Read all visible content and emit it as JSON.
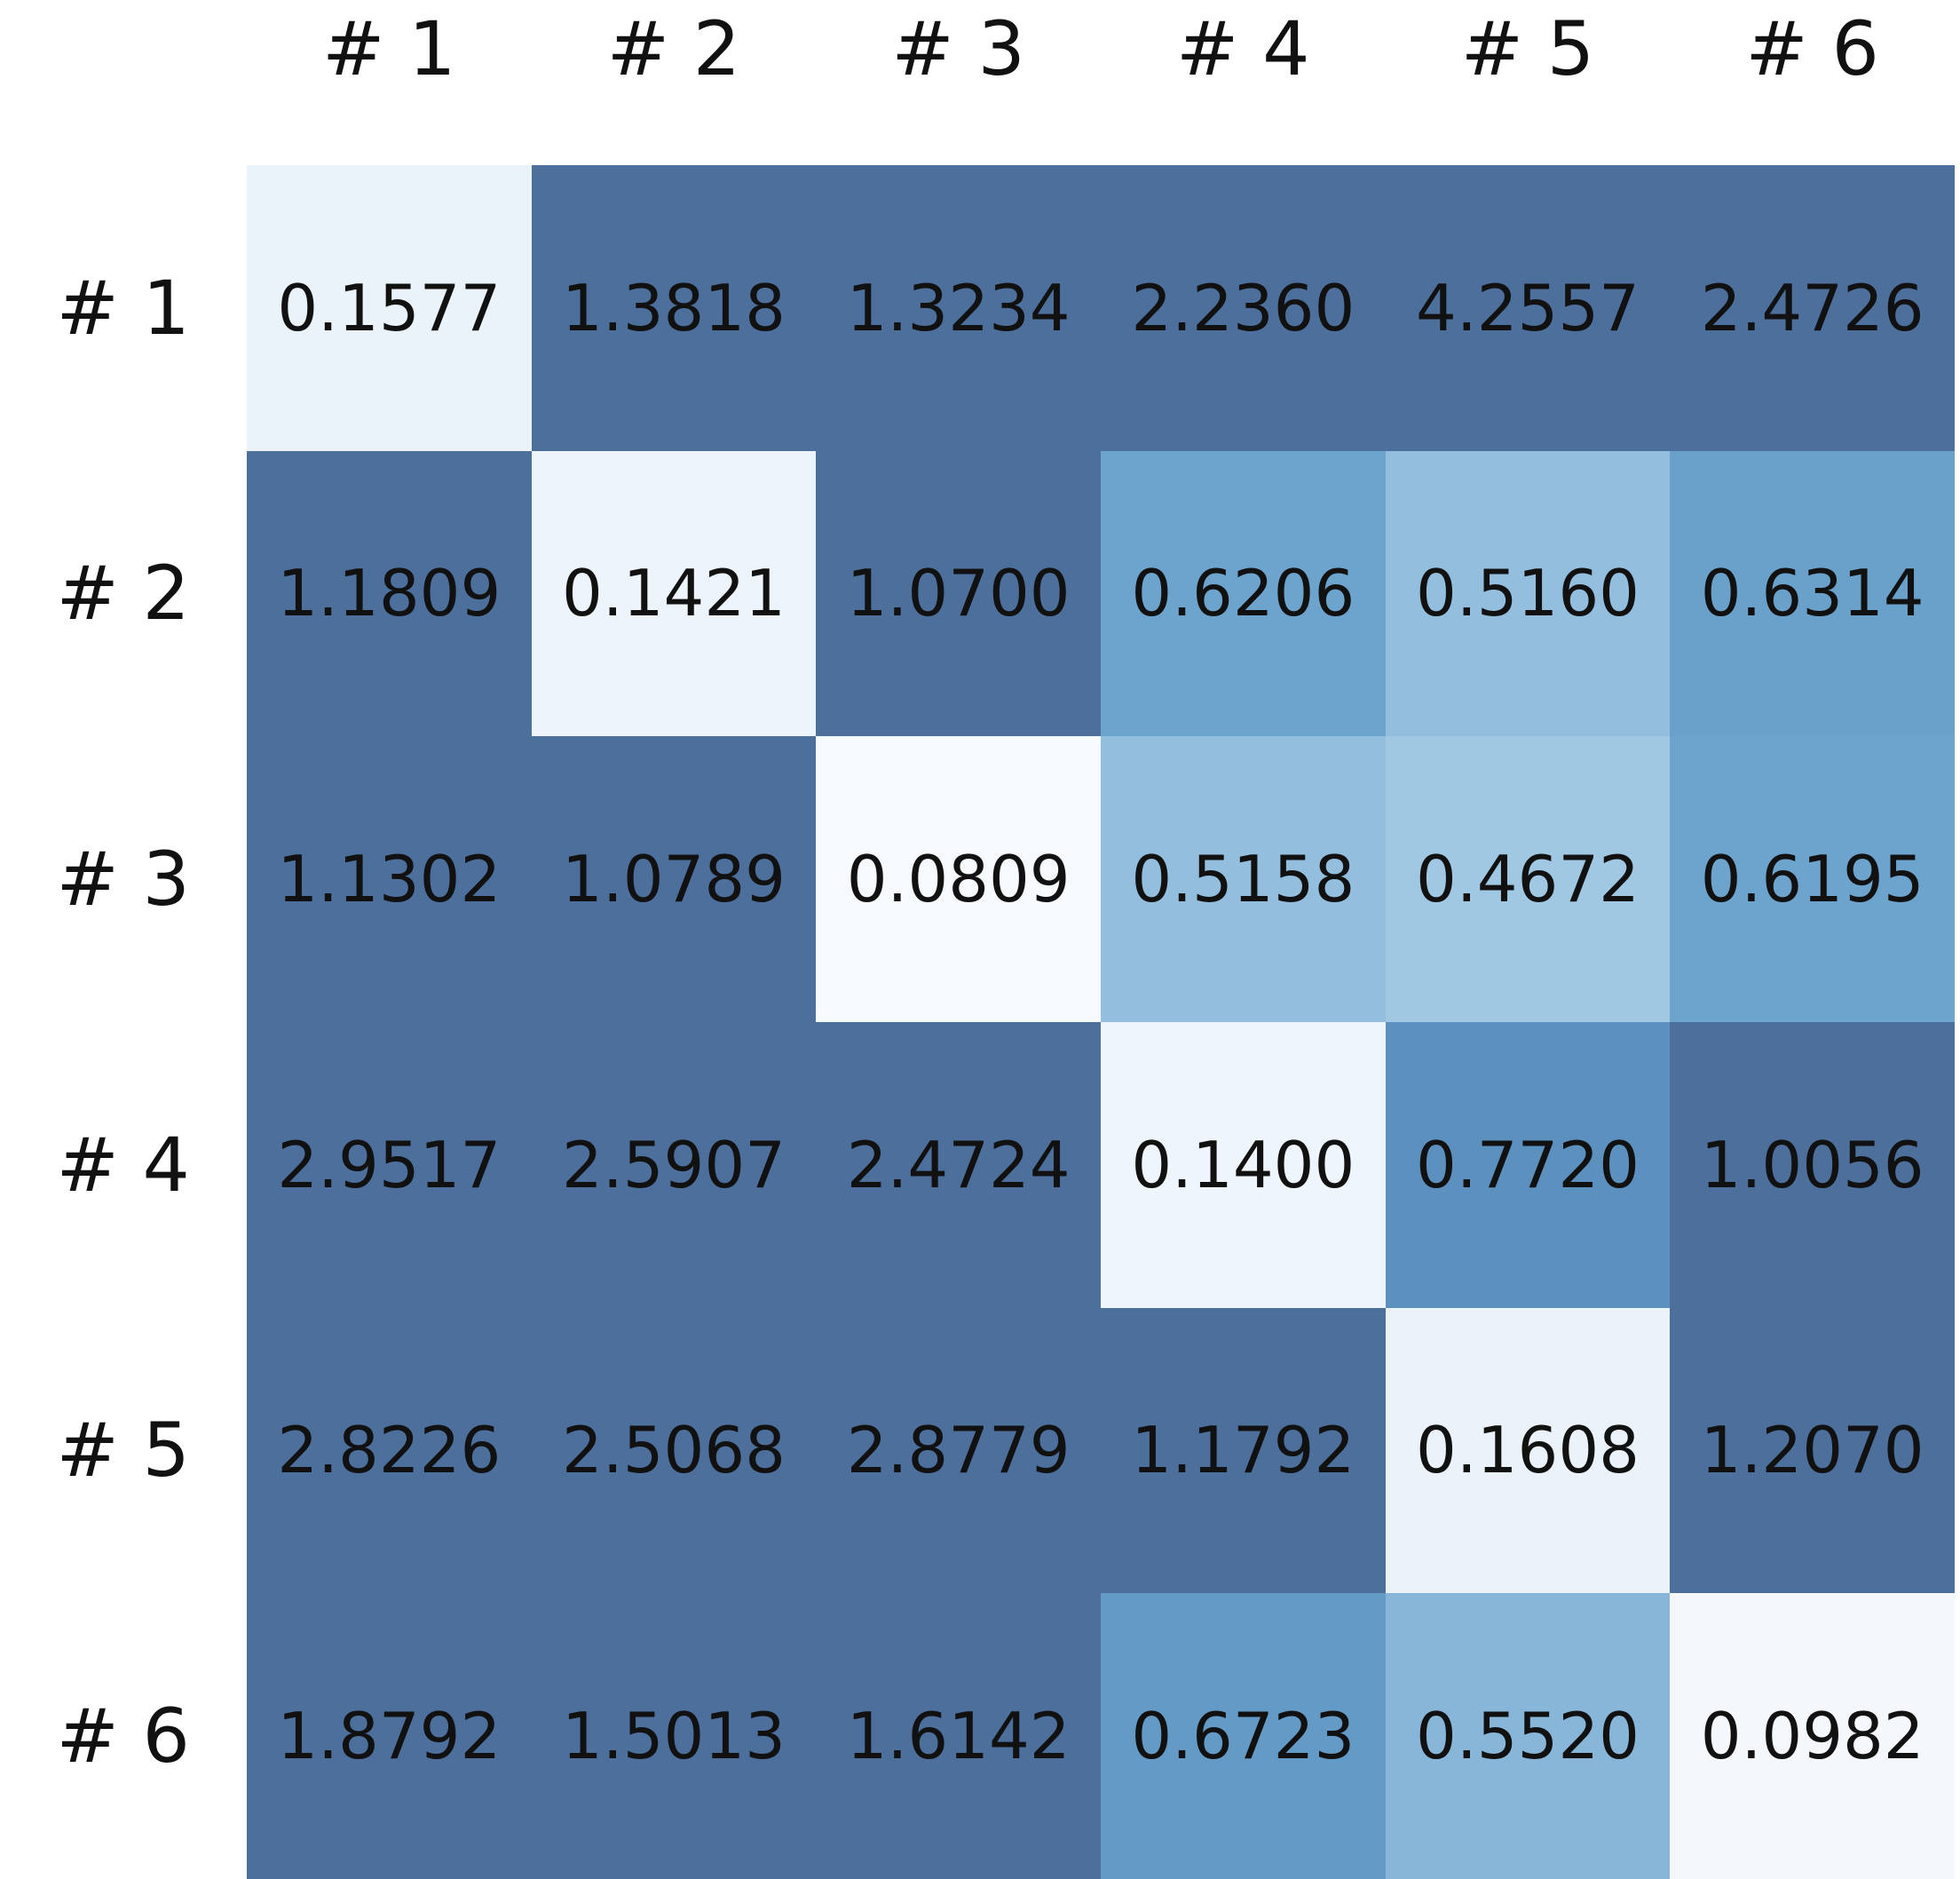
{
  "chart_data": {
    "type": "heatmap",
    "title": "",
    "xlabel": "",
    "ylabel": "",
    "row_labels": [
      "# 1",
      "# 2",
      "# 3",
      "# 4",
      "# 5",
      "# 6"
    ],
    "col_labels": [
      "# 1",
      "# 2",
      "# 3",
      "# 4",
      "# 5",
      "# 6"
    ],
    "cells": [
      [
        {
          "value": "0.1577",
          "color": "#eaf2fa"
        },
        {
          "value": "1.3818",
          "color": "#4d6f9c"
        },
        {
          "value": "1.3234",
          "color": "#4d6f9c"
        },
        {
          "value": "2.2360",
          "color": "#4d6f9c"
        },
        {
          "value": "4.2557",
          "color": "#4d6f9c"
        },
        {
          "value": "2.4726",
          "color": "#4d6f9c"
        }
      ],
      [
        {
          "value": "1.1809",
          "color": "#4d6f9c"
        },
        {
          "value": "0.1421",
          "color": "#eef4fb"
        },
        {
          "value": "1.0700",
          "color": "#4d6f9c"
        },
        {
          "value": "0.6206",
          "color": "#6da4cd"
        },
        {
          "value": "0.5160",
          "color": "#93bedd"
        },
        {
          "value": "0.6314",
          "color": "#6aa1ca"
        }
      ],
      [
        {
          "value": "1.1302",
          "color": "#4d6f9c"
        },
        {
          "value": "1.0789",
          "color": "#4d6f9c"
        },
        {
          "value": "0.0809",
          "color": "#f6fafe"
        },
        {
          "value": "0.5158",
          "color": "#93bedd"
        },
        {
          "value": "0.4672",
          "color": "#a0c8e3"
        },
        {
          "value": "0.6195",
          "color": "#6da4cd"
        }
      ],
      [
        {
          "value": "2.9517",
          "color": "#4d6f9c"
        },
        {
          "value": "2.5907",
          "color": "#4d6f9c"
        },
        {
          "value": "2.4724",
          "color": "#4d6f9c"
        },
        {
          "value": "0.1400",
          "color": "#eff5fc"
        },
        {
          "value": "0.7720",
          "color": "#5c90bf"
        },
        {
          "value": "1.0056",
          "color": "#4d6f9c"
        }
      ],
      [
        {
          "value": "2.8226",
          "color": "#4d6f9c"
        },
        {
          "value": "2.5068",
          "color": "#4d6f9c"
        },
        {
          "value": "2.8779",
          "color": "#4d6f9c"
        },
        {
          "value": "1.1792",
          "color": "#4d6f9c"
        },
        {
          "value": "0.1608",
          "color": "#ebf2fa"
        },
        {
          "value": "1.2070",
          "color": "#4d6f9c"
        }
      ],
      [
        {
          "value": "1.8792",
          "color": "#4d6f9c"
        },
        {
          "value": "1.5013",
          "color": "#4d6f9c"
        },
        {
          "value": "1.6142",
          "color": "#4d6f9c"
        },
        {
          "value": "0.6723",
          "color": "#649bc6"
        },
        {
          "value": "0.5520",
          "color": "#88b6d9"
        },
        {
          "value": "0.0982",
          "color": "#f4f8fd"
        }
      ]
    ],
    "colormap": {
      "description": "sequential light-to-dark blue; low values near white, shading darkens with value and saturates to darkest slate blue for values >= ~1.0",
      "min_color": "#f6fafe",
      "max_color": "#4d6f9c"
    },
    "value_text_color": "#111111",
    "background_color": "#ffffff",
    "grid": false,
    "legend": false
  }
}
